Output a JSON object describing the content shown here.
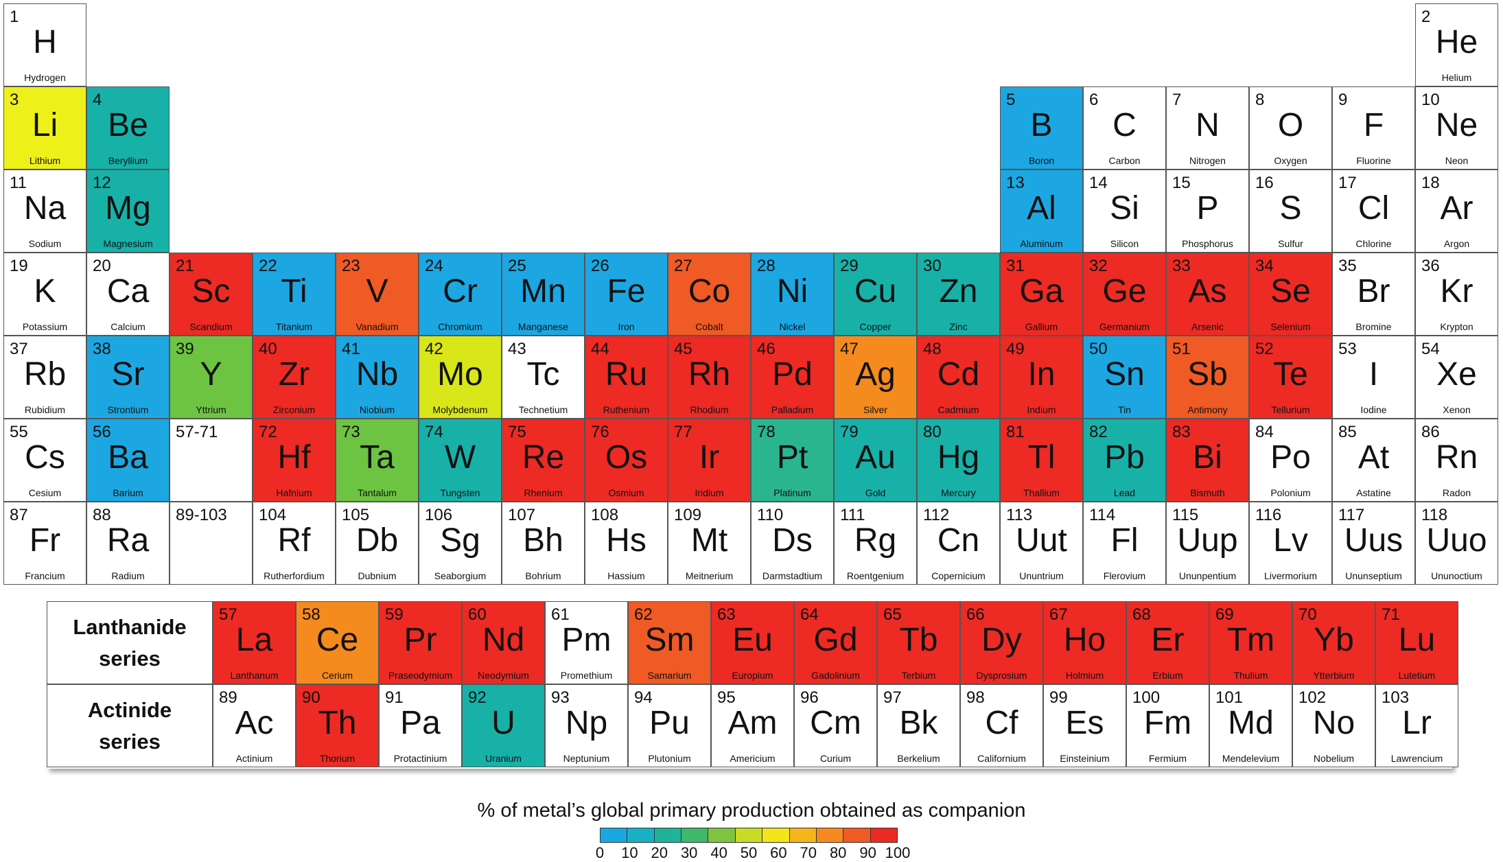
{
  "colors": {
    "none": "#ffffff",
    "blue": "#1ca7e2",
    "teal": "#17b1a8",
    "seagreen": "#2ab58f",
    "green": "#6dc443",
    "yellow": "#eef01a",
    "lime": "#d9e619",
    "orange": "#f58a1f",
    "redorange": "#f05a25",
    "red": "#ed2a24"
  },
  "main_table": [
    {
      "n": "1",
      "s": "H",
      "name": "Hydrogen",
      "r": 1,
      "c": 1,
      "color": "none"
    },
    {
      "n": "2",
      "s": "He",
      "name": "Helium",
      "r": 1,
      "c": 18,
      "color": "none"
    },
    {
      "n": "3",
      "s": "Li",
      "name": "Lithium",
      "r": 2,
      "c": 1,
      "color": "yellow"
    },
    {
      "n": "4",
      "s": "Be",
      "name": "Beryllium",
      "r": 2,
      "c": 2,
      "color": "teal"
    },
    {
      "n": "5",
      "s": "B",
      "name": "Boron",
      "r": 2,
      "c": 13,
      "color": "blue"
    },
    {
      "n": "6",
      "s": "C",
      "name": "Carbon",
      "r": 2,
      "c": 14,
      "color": "none"
    },
    {
      "n": "7",
      "s": "N",
      "name": "Nitrogen",
      "r": 2,
      "c": 15,
      "color": "none"
    },
    {
      "n": "8",
      "s": "O",
      "name": "Oxygen",
      "r": 2,
      "c": 16,
      "color": "none"
    },
    {
      "n": "9",
      "s": "F",
      "name": "Fluorine",
      "r": 2,
      "c": 17,
      "color": "none"
    },
    {
      "n": "10",
      "s": "Ne",
      "name": "Neon",
      "r": 2,
      "c": 18,
      "color": "none"
    },
    {
      "n": "11",
      "s": "Na",
      "name": "Sodium",
      "r": 3,
      "c": 1,
      "color": "none"
    },
    {
      "n": "12",
      "s": "Mg",
      "name": "Magnesium",
      "r": 3,
      "c": 2,
      "color": "teal"
    },
    {
      "n": "13",
      "s": "Al",
      "name": "Aluminum",
      "r": 3,
      "c": 13,
      "color": "blue"
    },
    {
      "n": "14",
      "s": "Si",
      "name": "Silicon",
      "r": 3,
      "c": 14,
      "color": "none"
    },
    {
      "n": "15",
      "s": "P",
      "name": "Phosphorus",
      "r": 3,
      "c": 15,
      "color": "none"
    },
    {
      "n": "16",
      "s": "S",
      "name": "Sulfur",
      "r": 3,
      "c": 16,
      "color": "none"
    },
    {
      "n": "17",
      "s": "Cl",
      "name": "Chlorine",
      "r": 3,
      "c": 17,
      "color": "none"
    },
    {
      "n": "18",
      "s": "Ar",
      "name": "Argon",
      "r": 3,
      "c": 18,
      "color": "none"
    },
    {
      "n": "19",
      "s": "K",
      "name": "Potassium",
      "r": 4,
      "c": 1,
      "color": "none"
    },
    {
      "n": "20",
      "s": "Ca",
      "name": "Calcium",
      "r": 4,
      "c": 2,
      "color": "none"
    },
    {
      "n": "21",
      "s": "Sc",
      "name": "Scandium",
      "r": 4,
      "c": 3,
      "color": "red"
    },
    {
      "n": "22",
      "s": "Ti",
      "name": "Titanium",
      "r": 4,
      "c": 4,
      "color": "blue"
    },
    {
      "n": "23",
      "s": "V",
      "name": "Vanadium",
      "r": 4,
      "c": 5,
      "color": "redorange"
    },
    {
      "n": "24",
      "s": "Cr",
      "name": "Chromium",
      "r": 4,
      "c": 6,
      "color": "blue"
    },
    {
      "n": "25",
      "s": "Mn",
      "name": "Manganese",
      "r": 4,
      "c": 7,
      "color": "blue"
    },
    {
      "n": "26",
      "s": "Fe",
      "name": "Iron",
      "r": 4,
      "c": 8,
      "color": "blue"
    },
    {
      "n": "27",
      "s": "Co",
      "name": "Cobalt",
      "r": 4,
      "c": 9,
      "color": "redorange"
    },
    {
      "n": "28",
      "s": "Ni",
      "name": "Nickel",
      "r": 4,
      "c": 10,
      "color": "blue"
    },
    {
      "n": "29",
      "s": "Cu",
      "name": "Copper",
      "r": 4,
      "c": 11,
      "color": "teal"
    },
    {
      "n": "30",
      "s": "Zn",
      "name": "Zinc",
      "r": 4,
      "c": 12,
      "color": "teal"
    },
    {
      "n": "31",
      "s": "Ga",
      "name": "Gallium",
      "r": 4,
      "c": 13,
      "color": "red"
    },
    {
      "n": "32",
      "s": "Ge",
      "name": "Germanium",
      "r": 4,
      "c": 14,
      "color": "red"
    },
    {
      "n": "33",
      "s": "As",
      "name": "Arsenic",
      "r": 4,
      "c": 15,
      "color": "red"
    },
    {
      "n": "34",
      "s": "Se",
      "name": "Selenium",
      "r": 4,
      "c": 16,
      "color": "red"
    },
    {
      "n": "35",
      "s": "Br",
      "name": "Bromine",
      "r": 4,
      "c": 17,
      "color": "none"
    },
    {
      "n": "36",
      "s": "Kr",
      "name": "Krypton",
      "r": 4,
      "c": 18,
      "color": "none"
    },
    {
      "n": "37",
      "s": "Rb",
      "name": "Rubidium",
      "r": 5,
      "c": 1,
      "color": "none"
    },
    {
      "n": "38",
      "s": "Sr",
      "name": "Strontium",
      "r": 5,
      "c": 2,
      "color": "blue"
    },
    {
      "n": "39",
      "s": "Y",
      "name": "Yttrium",
      "r": 5,
      "c": 3,
      "color": "green"
    },
    {
      "n": "40",
      "s": "Zr",
      "name": "Zirconium",
      "r": 5,
      "c": 4,
      "color": "red"
    },
    {
      "n": "41",
      "s": "Nb",
      "name": "Niobium",
      "r": 5,
      "c": 5,
      "color": "blue"
    },
    {
      "n": "42",
      "s": "Mo",
      "name": "Molybdenum",
      "r": 5,
      "c": 6,
      "color": "lime"
    },
    {
      "n": "43",
      "s": "Tc",
      "name": "Technetium",
      "r": 5,
      "c": 7,
      "color": "none"
    },
    {
      "n": "44",
      "s": "Ru",
      "name": "Ruthenium",
      "r": 5,
      "c": 8,
      "color": "red"
    },
    {
      "n": "45",
      "s": "Rh",
      "name": "Rhodium",
      "r": 5,
      "c": 9,
      "color": "red"
    },
    {
      "n": "46",
      "s": "Pd",
      "name": "Palladium",
      "r": 5,
      "c": 10,
      "color": "red"
    },
    {
      "n": "47",
      "s": "Ag",
      "name": "Silver",
      "r": 5,
      "c": 11,
      "color": "orange"
    },
    {
      "n": "48",
      "s": "Cd",
      "name": "Cadmium",
      "r": 5,
      "c": 12,
      "color": "red"
    },
    {
      "n": "49",
      "s": "In",
      "name": "Indium",
      "r": 5,
      "c": 13,
      "color": "red"
    },
    {
      "n": "50",
      "s": "Sn",
      "name": "Tin",
      "r": 5,
      "c": 14,
      "color": "blue"
    },
    {
      "n": "51",
      "s": "Sb",
      "name": "Antimony",
      "r": 5,
      "c": 15,
      "color": "redorange"
    },
    {
      "n": "52",
      "s": "Te",
      "name": "Tellurium",
      "r": 5,
      "c": 16,
      "color": "red"
    },
    {
      "n": "53",
      "s": "I",
      "name": "Iodine",
      "r": 5,
      "c": 17,
      "color": "none"
    },
    {
      "n": "54",
      "s": "Xe",
      "name": "Xenon",
      "r": 5,
      "c": 18,
      "color": "none"
    },
    {
      "n": "55",
      "s": "Cs",
      "name": "Cesium",
      "r": 6,
      "c": 1,
      "color": "none"
    },
    {
      "n": "56",
      "s": "Ba",
      "name": "Barium",
      "r": 6,
      "c": 2,
      "color": "blue"
    },
    {
      "n": "57-71",
      "s": "",
      "name": "",
      "r": 6,
      "c": 3,
      "color": "none",
      "range": true
    },
    {
      "n": "72",
      "s": "Hf",
      "name": "Hafnium",
      "r": 6,
      "c": 4,
      "color": "red"
    },
    {
      "n": "73",
      "s": "Ta",
      "name": "Tantalum",
      "r": 6,
      "c": 5,
      "color": "green"
    },
    {
      "n": "74",
      "s": "W",
      "name": "Tungsten",
      "r": 6,
      "c": 6,
      "color": "teal"
    },
    {
      "n": "75",
      "s": "Re",
      "name": "Rhenium",
      "r": 6,
      "c": 7,
      "color": "red"
    },
    {
      "n": "76",
      "s": "Os",
      "name": "Osmium",
      "r": 6,
      "c": 8,
      "color": "red"
    },
    {
      "n": "77",
      "s": "Ir",
      "name": "Iridium",
      "r": 6,
      "c": 9,
      "color": "red"
    },
    {
      "n": "78",
      "s": "Pt",
      "name": "Platinum",
      "r": 6,
      "c": 10,
      "color": "seagreen"
    },
    {
      "n": "79",
      "s": "Au",
      "name": "Gold",
      "r": 6,
      "c": 11,
      "color": "teal"
    },
    {
      "n": "80",
      "s": "Hg",
      "name": "Mercury",
      "r": 6,
      "c": 12,
      "color": "teal"
    },
    {
      "n": "81",
      "s": "Tl",
      "name": "Thallium",
      "r": 6,
      "c": 13,
      "color": "red"
    },
    {
      "n": "82",
      "s": "Pb",
      "name": "Lead",
      "r": 6,
      "c": 14,
      "color": "teal"
    },
    {
      "n": "83",
      "s": "Bi",
      "name": "Bismuth",
      "r": 6,
      "c": 15,
      "color": "red"
    },
    {
      "n": "84",
      "s": "Po",
      "name": "Polonium",
      "r": 6,
      "c": 16,
      "color": "none"
    },
    {
      "n": "85",
      "s": "At",
      "name": "Astatine",
      "r": 6,
      "c": 17,
      "color": "none"
    },
    {
      "n": "86",
      "s": "Rn",
      "name": "Radon",
      "r": 6,
      "c": 18,
      "color": "none"
    },
    {
      "n": "87",
      "s": "Fr",
      "name": "Francium",
      "r": 7,
      "c": 1,
      "color": "none"
    },
    {
      "n": "88",
      "s": "Ra",
      "name": "Radium",
      "r": 7,
      "c": 2,
      "color": "none"
    },
    {
      "n": "89-103",
      "s": "",
      "name": "",
      "r": 7,
      "c": 3,
      "color": "none",
      "range": true
    },
    {
      "n": "104",
      "s": "Rf",
      "name": "Rutherfordium",
      "r": 7,
      "c": 4,
      "color": "none"
    },
    {
      "n": "105",
      "s": "Db",
      "name": "Dubnium",
      "r": 7,
      "c": 5,
      "color": "none"
    },
    {
      "n": "106",
      "s": "Sg",
      "name": "Seaborgium",
      "r": 7,
      "c": 6,
      "color": "none"
    },
    {
      "n": "107",
      "s": "Bh",
      "name": "Bohrium",
      "r": 7,
      "c": 7,
      "color": "none"
    },
    {
      "n": "108",
      "s": "Hs",
      "name": "Hassium",
      "r": 7,
      "c": 8,
      "color": "none"
    },
    {
      "n": "109",
      "s": "Mt",
      "name": "Meitnerium",
      "r": 7,
      "c": 9,
      "color": "none"
    },
    {
      "n": "110",
      "s": "Ds",
      "name": "Darmstadtium",
      "r": 7,
      "c": 10,
      "color": "none"
    },
    {
      "n": "111",
      "s": "Rg",
      "name": "Roentgenium",
      "r": 7,
      "c": 11,
      "color": "none"
    },
    {
      "n": "112",
      "s": "Cn",
      "name": "Copernicium",
      "r": 7,
      "c": 12,
      "color": "none"
    },
    {
      "n": "113",
      "s": "Uut",
      "name": "Ununtrium",
      "r": 7,
      "c": 13,
      "color": "none"
    },
    {
      "n": "114",
      "s": "Fl",
      "name": "Flerovium",
      "r": 7,
      "c": 14,
      "color": "none"
    },
    {
      "n": "115",
      "s": "Uup",
      "name": "Ununpentium",
      "r": 7,
      "c": 15,
      "color": "none"
    },
    {
      "n": "116",
      "s": "Lv",
      "name": "Livermorium",
      "r": 7,
      "c": 16,
      "color": "none"
    },
    {
      "n": "117",
      "s": "Uus",
      "name": "Ununseptium",
      "r": 7,
      "c": 17,
      "color": "none"
    },
    {
      "n": "118",
      "s": "Uuo",
      "name": "Ununoctium",
      "r": 7,
      "c": 18,
      "color": "none"
    }
  ],
  "series": [
    {
      "label": "Lanthanide\nseries",
      "elements": [
        {
          "n": "57",
          "s": "La",
          "name": "Lanthanum",
          "color": "red"
        },
        {
          "n": "58",
          "s": "Ce",
          "name": "Cerium",
          "color": "orange"
        },
        {
          "n": "59",
          "s": "Pr",
          "name": "Praseodymium",
          "color": "red"
        },
        {
          "n": "60",
          "s": "Nd",
          "name": "Neodymium",
          "color": "red"
        },
        {
          "n": "61",
          "s": "Pm",
          "name": "Promethium",
          "color": "none"
        },
        {
          "n": "62",
          "s": "Sm",
          "name": "Samarium",
          "color": "redorange"
        },
        {
          "n": "63",
          "s": "Eu",
          "name": "Europium",
          "color": "red"
        },
        {
          "n": "64",
          "s": "Gd",
          "name": "Gadolinium",
          "color": "red"
        },
        {
          "n": "65",
          "s": "Tb",
          "name": "Terbium",
          "color": "red"
        },
        {
          "n": "66",
          "s": "Dy",
          "name": "Dysprosium",
          "color": "red"
        },
        {
          "n": "67",
          "s": "Ho",
          "name": "Holmium",
          "color": "red"
        },
        {
          "n": "68",
          "s": "Er",
          "name": "Erbium",
          "color": "red"
        },
        {
          "n": "69",
          "s": "Tm",
          "name": "Thulium",
          "color": "red"
        },
        {
          "n": "70",
          "s": "Yb",
          "name": "Ytterbium",
          "color": "red"
        },
        {
          "n": "71",
          "s": "Lu",
          "name": "Lutetium",
          "color": "red"
        }
      ]
    },
    {
      "label": "Actinide\nseries",
      "elements": [
        {
          "n": "89",
          "s": "Ac",
          "name": "Actinium",
          "color": "none"
        },
        {
          "n": "90",
          "s": "Th",
          "name": "Thorium",
          "color": "red"
        },
        {
          "n": "91",
          "s": "Pa",
          "name": "Protactinium",
          "color": "none"
        },
        {
          "n": "92",
          "s": "U",
          "name": "Uranium",
          "color": "teal"
        },
        {
          "n": "93",
          "s": "Np",
          "name": "Neptunium",
          "color": "none"
        },
        {
          "n": "94",
          "s": "Pu",
          "name": "Plutonium",
          "color": "none"
        },
        {
          "n": "95",
          "s": "Am",
          "name": "Americium",
          "color": "none"
        },
        {
          "n": "96",
          "s": "Cm",
          "name": "Curium",
          "color": "none"
        },
        {
          "n": "97",
          "s": "Bk",
          "name": "Berkelium",
          "color": "none"
        },
        {
          "n": "98",
          "s": "Cf",
          "name": "Californium",
          "color": "none"
        },
        {
          "n": "99",
          "s": "Es",
          "name": "Einsteinium",
          "color": "none"
        },
        {
          "n": "100",
          "s": "Fm",
          "name": "Fermium",
          "color": "none"
        },
        {
          "n": "101",
          "s": "Md",
          "name": "Mendelevium",
          "color": "none"
        },
        {
          "n": "102",
          "s": "No",
          "name": "Nobelium",
          "color": "none"
        },
        {
          "n": "103",
          "s": "Lr",
          "name": "Lawrencium",
          "color": "none"
        }
      ]
    }
  ],
  "legend": {
    "title": "% of metal’s global primary production obtained as companion",
    "segment_colors": [
      "#1aa8e3",
      "#16b2c4",
      "#1fb39a",
      "#3fb86a",
      "#7fc441",
      "#c8dc25",
      "#f2e51a",
      "#f7b51c",
      "#f68a20",
      "#f05a25",
      "#ec2a24"
    ],
    "ticks": [
      "0",
      "10",
      "20",
      "30",
      "40",
      "50",
      "60",
      "70",
      "80",
      "90",
      "100"
    ]
  }
}
